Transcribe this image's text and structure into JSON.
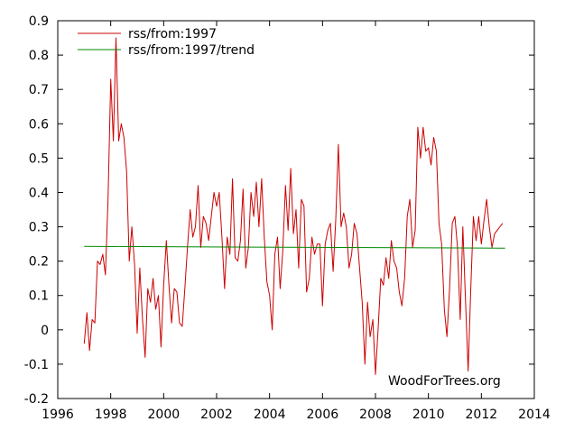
{
  "chart_data": {
    "type": "line",
    "title": "",
    "xlabel": "",
    "ylabel": "",
    "xlim": [
      1996,
      2014
    ],
    "ylim": [
      -0.2,
      0.9
    ],
    "grid": false,
    "legend_position": "top-left",
    "x_ticks": [
      1996,
      1998,
      2000,
      2002,
      2004,
      2006,
      2008,
      2010,
      2012,
      2014
    ],
    "x_tick_labels": [
      "1996",
      "1998",
      "2000",
      "2002",
      "2004",
      "2006",
      "2008",
      "2010",
      "2012",
      "2014"
    ],
    "y_ticks": [
      -0.2,
      -0.1,
      0,
      0.1,
      0.2,
      0.3,
      0.4,
      0.5,
      0.6,
      0.7,
      0.8,
      0.9
    ],
    "y_tick_labels": [
      "-0.2",
      "-0.1",
      "0",
      "0.1",
      "0.2",
      "0.3",
      "0.4",
      "0.5",
      "0.6",
      "0.7",
      "0.8",
      "0.9"
    ],
    "annotation": "WoodForTrees.org",
    "series": [
      {
        "name": "rss/from:1997",
        "color": "#cc0000",
        "x": [
          1997.0,
          1997.1,
          1997.2,
          1997.3,
          1997.4,
          1997.5,
          1997.6,
          1997.7,
          1997.8,
          1997.9,
          1998.0,
          1998.1,
          1998.2,
          1998.3,
          1998.4,
          1998.5,
          1998.6,
          1998.7,
          1998.8,
          1998.9,
          1999.0,
          1999.1,
          1999.2,
          1999.3,
          1999.4,
          1999.5,
          1999.6,
          1999.7,
          1999.8,
          1999.9,
          2000.0,
          2000.1,
          2000.2,
          2000.3,
          2000.4,
          2000.5,
          2000.6,
          2000.7,
          2000.8,
          2000.9,
          2001.0,
          2001.1,
          2001.2,
          2001.3,
          2001.4,
          2001.5,
          2001.6,
          2001.7,
          2001.8,
          2001.9,
          2002.0,
          2002.1,
          2002.2,
          2002.3,
          2002.4,
          2002.5,
          2002.6,
          2002.7,
          2002.8,
          2002.9,
          2003.0,
          2003.1,
          2003.2,
          2003.3,
          2003.4,
          2003.5,
          2003.6,
          2003.7,
          2003.8,
          2003.9,
          2004.0,
          2004.1,
          2004.2,
          2004.3,
          2004.4,
          2004.5,
          2004.6,
          2004.7,
          2004.8,
          2004.9,
          2005.0,
          2005.1,
          2005.2,
          2005.3,
          2005.4,
          2005.5,
          2005.6,
          2005.7,
          2005.8,
          2005.9,
          2006.0,
          2006.1,
          2006.2,
          2006.3,
          2006.4,
          2006.5,
          2006.6,
          2006.7,
          2006.8,
          2006.9,
          2007.0,
          2007.1,
          2007.2,
          2007.3,
          2007.4,
          2007.5,
          2007.6,
          2007.7,
          2007.8,
          2007.9,
          2008.0,
          2008.1,
          2008.2,
          2008.3,
          2008.4,
          2008.5,
          2008.6,
          2008.7,
          2008.8,
          2008.9,
          2009.0,
          2009.1,
          2009.2,
          2009.3,
          2009.4,
          2009.5,
          2009.6,
          2009.7,
          2009.8,
          2009.9,
          2010.0,
          2010.1,
          2010.2,
          2010.3,
          2010.4,
          2010.5,
          2010.6,
          2010.7,
          2010.8,
          2010.9,
          2011.0,
          2011.1,
          2011.2,
          2011.3,
          2011.4,
          2011.5,
          2011.6,
          2011.7,
          2011.8,
          2011.9,
          2012.0,
          2012.1,
          2012.2,
          2012.3,
          2012.4,
          2012.5,
          2012.6,
          2012.7,
          2012.8
        ],
        "values": [
          -0.04,
          0.05,
          -0.06,
          0.03,
          0.02,
          0.2,
          0.19,
          0.22,
          0.16,
          0.38,
          0.73,
          0.55,
          0.85,
          0.55,
          0.6,
          0.56,
          0.46,
          0.2,
          0.3,
          0.19,
          -0.01,
          0.18,
          0.03,
          -0.08,
          0.12,
          0.08,
          0.15,
          0.06,
          0.1,
          -0.05,
          0.13,
          0.26,
          0.13,
          0.02,
          0.12,
          0.11,
          0.02,
          0.01,
          0.12,
          0.24,
          0.35,
          0.27,
          0.3,
          0.42,
          0.24,
          0.33,
          0.31,
          0.26,
          0.33,
          0.4,
          0.36,
          0.4,
          0.27,
          0.12,
          0.27,
          0.22,
          0.44,
          0.21,
          0.2,
          0.26,
          0.41,
          0.18,
          0.24,
          0.4,
          0.33,
          0.43,
          0.3,
          0.44,
          0.27,
          0.14,
          0.1,
          0.0,
          0.22,
          0.27,
          0.12,
          0.23,
          0.42,
          0.29,
          0.47,
          0.28,
          0.35,
          0.18,
          0.38,
          0.36,
          0.11,
          0.15,
          0.27,
          0.22,
          0.25,
          0.25,
          0.07,
          0.25,
          0.29,
          0.31,
          0.17,
          0.32,
          0.54,
          0.3,
          0.34,
          0.3,
          0.18,
          0.22,
          0.31,
          0.28,
          0.18,
          0.08,
          -0.1,
          0.08,
          -0.02,
          0.03,
          -0.13,
          0.0,
          0.15,
          0.13,
          0.21,
          0.15,
          0.26,
          0.2,
          0.18,
          0.11,
          0.07,
          0.15,
          0.33,
          0.38,
          0.24,
          0.29,
          0.59,
          0.5,
          0.59,
          0.52,
          0.53,
          0.48,
          0.56,
          0.52,
          0.31,
          0.25,
          0.06,
          -0.02,
          0.12,
          0.31,
          0.33,
          0.24,
          0.03,
          0.3,
          0.09,
          -0.12,
          0.12,
          0.33,
          0.26,
          0.33,
          0.25,
          0.32,
          0.38,
          0.3,
          0.24,
          0.28,
          0.29,
          0.3,
          0.31
        ],
        "legend_label": "rss/from:1997"
      },
      {
        "name": "rss/from:1997/trend",
        "color": "#008800",
        "x": [
          1997.0,
          2012.9
        ],
        "values": [
          0.243,
          0.238
        ],
        "legend_label": "rss/from:1997/trend"
      }
    ]
  }
}
